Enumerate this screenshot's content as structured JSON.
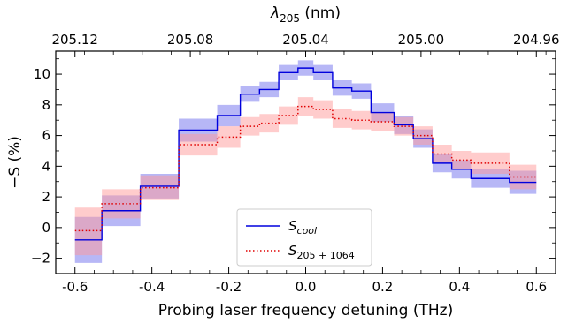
{
  "chart_data": {
    "type": "line",
    "xlabel": "Probing laser frequency detuning (THz)",
    "ylabel": "−S (%)",
    "xlim": [
      -0.65,
      0.65
    ],
    "ylim": [
      -3,
      11.5
    ],
    "x_ticks": [
      {
        "value": -0.6,
        "label": "-0.6"
      },
      {
        "value": -0.4,
        "label": "-0.4"
      },
      {
        "value": -0.2,
        "label": "-0.2"
      },
      {
        "value": 0.0,
        "label": "0.0"
      },
      {
        "value": 0.2,
        "label": "0.2"
      },
      {
        "value": 0.4,
        "label": "0.4"
      },
      {
        "value": 0.6,
        "label": "0.6"
      }
    ],
    "y_ticks": [
      {
        "value": -2,
        "label": "−2"
      },
      {
        "value": 0,
        "label": "0"
      },
      {
        "value": 2,
        "label": "2"
      },
      {
        "value": 4,
        "label": "4"
      },
      {
        "value": 6,
        "label": "6"
      },
      {
        "value": 8,
        "label": "8"
      },
      {
        "value": 10,
        "label": "10"
      }
    ],
    "top_axis": {
      "label": "λ",
      "label_sub": "205",
      "label_unit": " (nm)",
      "ticks": [
        {
          "value": -0.6,
          "label": "205.12"
        },
        {
          "value": -0.3,
          "label": "205.08"
        },
        {
          "value": 0.0,
          "label": "205.04"
        },
        {
          "value": 0.3,
          "label": "205.00"
        },
        {
          "value": 0.6,
          "label": "204.96"
        }
      ]
    },
    "legend": {
      "placement": "bottom-center",
      "entries": [
        {
          "main": "S",
          "sub": "cool"
        },
        {
          "main": "S",
          "sub": "205 + 1064"
        }
      ]
    },
    "series": [
      {
        "color": "#0000dd",
        "band_color": "#7070ee",
        "style": "solid",
        "steps": [
          {
            "x0": -0.6,
            "x1": -0.53,
            "y": -0.8,
            "lo": -2.3,
            "hi": 0.7
          },
          {
            "x0": -0.53,
            "x1": -0.43,
            "y": 1.1,
            "lo": 0.1,
            "hi": 2.1
          },
          {
            "x0": -0.43,
            "x1": -0.33,
            "y": 2.7,
            "lo": 1.9,
            "hi": 3.5
          },
          {
            "x0": -0.33,
            "x1": -0.23,
            "y": 6.35,
            "lo": 5.6,
            "hi": 7.1
          },
          {
            "x0": -0.23,
            "x1": -0.17,
            "y": 7.3,
            "lo": 6.6,
            "hi": 8.0
          },
          {
            "x0": -0.17,
            "x1": -0.12,
            "y": 8.7,
            "lo": 8.2,
            "hi": 9.2
          },
          {
            "x0": -0.12,
            "x1": -0.07,
            "y": 9.0,
            "lo": 8.5,
            "hi": 9.5
          },
          {
            "x0": -0.07,
            "x1": -0.02,
            "y": 10.1,
            "lo": 9.6,
            "hi": 10.6
          },
          {
            "x0": -0.02,
            "x1": 0.02,
            "y": 10.4,
            "lo": 9.9,
            "hi": 10.9
          },
          {
            "x0": 0.02,
            "x1": 0.07,
            "y": 10.1,
            "lo": 9.6,
            "hi": 10.6
          },
          {
            "x0": 0.07,
            "x1": 0.12,
            "y": 9.1,
            "lo": 8.6,
            "hi": 9.6
          },
          {
            "x0": 0.12,
            "x1": 0.17,
            "y": 8.9,
            "lo": 8.4,
            "hi": 9.4
          },
          {
            "x0": 0.17,
            "x1": 0.23,
            "y": 7.5,
            "lo": 6.9,
            "hi": 8.1
          },
          {
            "x0": 0.23,
            "x1": 0.28,
            "y": 6.7,
            "lo": 6.1,
            "hi": 7.3
          },
          {
            "x0": 0.28,
            "x1": 0.33,
            "y": 5.8,
            "lo": 5.2,
            "hi": 6.4
          },
          {
            "x0": 0.33,
            "x1": 0.38,
            "y": 4.2,
            "lo": 3.6,
            "hi": 4.8
          },
          {
            "x0": 0.38,
            "x1": 0.43,
            "y": 3.8,
            "lo": 3.2,
            "hi": 4.4
          },
          {
            "x0": 0.43,
            "x1": 0.53,
            "y": 3.2,
            "lo": 2.6,
            "hi": 3.8
          },
          {
            "x0": 0.53,
            "x1": 0.6,
            "y": 2.95,
            "lo": 2.2,
            "hi": 3.7
          }
        ]
      },
      {
        "color": "#e00000",
        "band_color": "#ff9a9a",
        "style": "dotted",
        "steps": [
          {
            "x0": -0.6,
            "x1": -0.53,
            "y": -0.2,
            "lo": -1.8,
            "hi": 1.3
          },
          {
            "x0": -0.53,
            "x1": -0.43,
            "y": 1.55,
            "lo": 0.6,
            "hi": 2.5
          },
          {
            "x0": -0.43,
            "x1": -0.33,
            "y": 2.6,
            "lo": 1.8,
            "hi": 3.4
          },
          {
            "x0": -0.33,
            "x1": -0.23,
            "y": 5.4,
            "lo": 4.7,
            "hi": 6.1
          },
          {
            "x0": -0.23,
            "x1": -0.17,
            "y": 5.9,
            "lo": 5.2,
            "hi": 6.6
          },
          {
            "x0": -0.17,
            "x1": -0.12,
            "y": 6.6,
            "lo": 6.0,
            "hi": 7.2
          },
          {
            "x0": -0.12,
            "x1": -0.07,
            "y": 6.8,
            "lo": 6.2,
            "hi": 7.4
          },
          {
            "x0": -0.07,
            "x1": -0.02,
            "y": 7.3,
            "lo": 6.7,
            "hi": 7.9
          },
          {
            "x0": -0.02,
            "x1": 0.02,
            "y": 7.9,
            "lo": 7.3,
            "hi": 8.5
          },
          {
            "x0": 0.02,
            "x1": 0.07,
            "y": 7.7,
            "lo": 7.1,
            "hi": 8.3
          },
          {
            "x0": 0.07,
            "x1": 0.12,
            "y": 7.1,
            "lo": 6.5,
            "hi": 7.7
          },
          {
            "x0": 0.12,
            "x1": 0.17,
            "y": 7.0,
            "lo": 6.4,
            "hi": 7.6
          },
          {
            "x0": 0.17,
            "x1": 0.23,
            "y": 6.9,
            "lo": 6.3,
            "hi": 7.5
          },
          {
            "x0": 0.23,
            "x1": 0.28,
            "y": 6.6,
            "lo": 6.0,
            "hi": 7.2
          },
          {
            "x0": 0.28,
            "x1": 0.33,
            "y": 6.0,
            "lo": 5.4,
            "hi": 6.6
          },
          {
            "x0": 0.33,
            "x1": 0.38,
            "y": 4.8,
            "lo": 4.2,
            "hi": 5.4
          },
          {
            "x0": 0.38,
            "x1": 0.43,
            "y": 4.4,
            "lo": 3.8,
            "hi": 5.0
          },
          {
            "x0": 0.43,
            "x1": 0.53,
            "y": 4.2,
            "lo": 3.5,
            "hi": 4.9
          },
          {
            "x0": 0.53,
            "x1": 0.6,
            "y": 3.3,
            "lo": 2.5,
            "hi": 4.1
          }
        ]
      }
    ]
  }
}
